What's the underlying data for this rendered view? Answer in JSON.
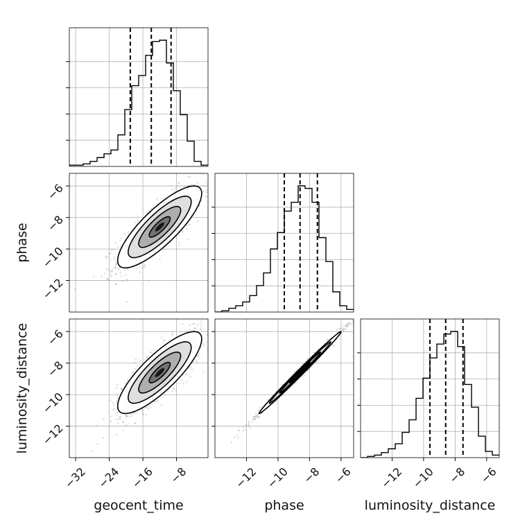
{
  "chart_data": {
    "type": "corner",
    "parameters": [
      "geocent_time",
      "phase",
      "luminosity_distance"
    ],
    "axis_labels": {
      "geocent_time": "geocent_time",
      "phase": "phase",
      "luminosity_distance": "luminosity_distance"
    },
    "ranges": {
      "geocent_time": [
        -33.5,
        -0.5
      ],
      "phase": [
        -14.0,
        -5.2
      ],
      "luminosity_distance": [
        -14.0,
        -5.2
      ]
    },
    "ticks": {
      "geocent_time": [
        -32,
        -24,
        -16,
        -8
      ],
      "phase": [
        -12,
        -10,
        -8,
        -6
      ],
      "luminosity_distance": [
        -12,
        -10,
        -8,
        -6
      ]
    },
    "tick_labels": {
      "geocent_time": [
        "−32",
        "−24",
        "−16",
        "−8"
      ],
      "phase": [
        "−12",
        "−10",
        "−8",
        "−6"
      ],
      "luminosity_distance": [
        "−12",
        "−10",
        "−8",
        "−6"
      ]
    },
    "quantiles": {
      "geocent_time": [
        -19.0,
        -14.0,
        -9.3
      ],
      "phase": [
        -9.6,
        -8.6,
        -7.5
      ],
      "luminosity_distance": [
        -9.6,
        -8.6,
        -7.5
      ]
    },
    "histograms": {
      "geocent_time": {
        "edges": [
          -33.5,
          -31.85,
          -30.2,
          -28.55,
          -26.9,
          -25.25,
          -23.6,
          -21.95,
          -20.3,
          -18.65,
          -17.0,
          -15.35,
          -13.7,
          -12.05,
          -10.4,
          -8.75,
          -7.1,
          -5.45,
          -3.8,
          -2.15,
          -0.5
        ],
        "counts": [
          0.01,
          0.01,
          0.02,
          0.04,
          0.07,
          0.1,
          0.13,
          0.25,
          0.45,
          0.64,
          0.72,
          0.88,
          0.99,
          1.0,
          0.82,
          0.6,
          0.41,
          0.2,
          0.04,
          0.01
        ]
      },
      "phase": {
        "edges": [
          -14.0,
          -13.56,
          -13.12,
          -12.68,
          -12.24,
          -11.8,
          -11.36,
          -10.92,
          -10.48,
          -10.04,
          -9.6,
          -9.16,
          -8.72,
          -8.28,
          -7.84,
          -7.4,
          -6.96,
          -6.52,
          -6.08,
          -5.64,
          -5.2
        ],
        "counts": [
          0.0,
          0.01,
          0.03,
          0.05,
          0.08,
          0.13,
          0.21,
          0.31,
          0.5,
          0.63,
          0.8,
          0.87,
          1.0,
          0.98,
          0.87,
          0.59,
          0.4,
          0.16,
          0.05,
          0.02
        ]
      },
      "luminosity_distance": {
        "edges": [
          -14.0,
          -13.56,
          -13.12,
          -12.68,
          -12.24,
          -11.8,
          -11.36,
          -10.92,
          -10.48,
          -10.04,
          -9.6,
          -9.16,
          -8.72,
          -8.28,
          -7.84,
          -7.4,
          -6.96,
          -6.52,
          -6.08,
          -5.64,
          -5.2
        ],
        "counts": [
          0.0,
          0.01,
          0.02,
          0.04,
          0.07,
          0.11,
          0.2,
          0.3,
          0.47,
          0.63,
          0.79,
          0.9,
          0.98,
          1.0,
          0.88,
          0.58,
          0.4,
          0.17,
          0.05,
          0.02
        ]
      }
    },
    "joint_2d": [
      {
        "x": "geocent_time",
        "y": "phase",
        "center": [
          -12.0,
          -8.6
        ],
        "sd_x": 5.0,
        "sd_y": 1.3,
        "correlation": 0.82,
        "contour_levels_sigma": [
          0.5,
          1.0,
          1.5,
          2.0
        ]
      },
      {
        "x": "geocent_time",
        "y": "luminosity_distance",
        "center": [
          -12.0,
          -8.6
        ],
        "sd_x": 5.0,
        "sd_y": 1.3,
        "correlation": 0.82,
        "contour_levels_sigma": [
          0.5,
          1.0,
          1.5,
          2.0
        ]
      },
      {
        "x": "phase",
        "y": "luminosity_distance",
        "center": [
          -8.6,
          -8.6
        ],
        "sd_x": 1.3,
        "sd_y": 1.3,
        "correlation": 0.995,
        "contour_levels_sigma": [
          0.5,
          1.0,
          1.5,
          2.0
        ]
      }
    ],
    "grid": true,
    "colors": {
      "line": "#000000",
      "scatter": "#888888",
      "grid": "#b0b0b0"
    }
  }
}
